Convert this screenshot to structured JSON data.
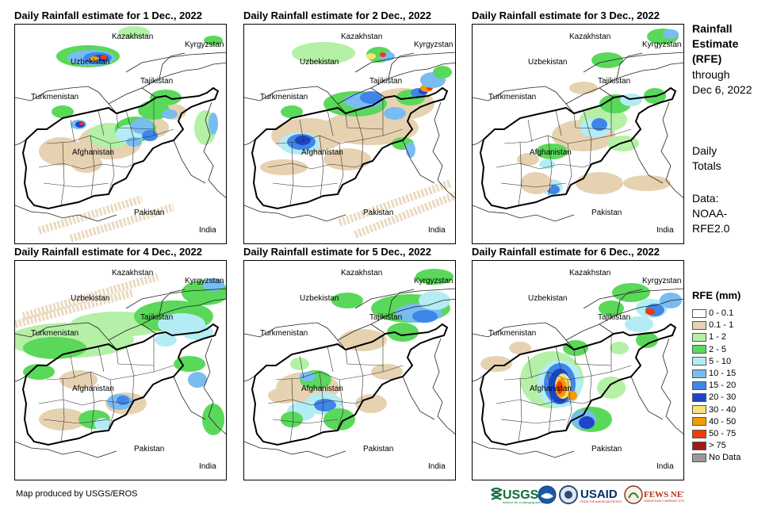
{
  "panels": [
    {
      "title": "Daily Rainfall estimate for 1 Dec., 2022",
      "day": 1
    },
    {
      "title": "Daily Rainfall estimate for 2 Dec., 2022",
      "day": 2
    },
    {
      "title": "Daily Rainfall estimate for 3 Dec., 2022",
      "day": 3
    },
    {
      "title": "Daily Rainfall estimate for 4 Dec., 2022",
      "day": 4
    },
    {
      "title": "Daily Rainfall estimate for 5 Dec., 2022",
      "day": 5
    },
    {
      "title": "Daily Rainfall estimate for 6 Dec., 2022",
      "day": 6
    }
  ],
  "countries": {
    "kazakhstan": "Kazakhstan",
    "kyrgyzstan": "Kyrgyzstan",
    "uzbekistan": "Uzbekistan",
    "tajikistan": "Tajikistan",
    "turkmenistan": "Turkmenistan",
    "afghanistan": "Afghanistan",
    "pakistan": "Pakistan",
    "india": "India"
  },
  "side": {
    "title_lines": [
      "Rainfall",
      "Estimate",
      "(RFE)"
    ],
    "through_lines": [
      "through",
      "Dec 6, 2022"
    ],
    "daily_lines": [
      "Daily",
      "Totals"
    ],
    "data_lines": [
      "Data:",
      "NOAA-",
      "RFE2.0"
    ]
  },
  "legend": {
    "title": "RFE (mm)",
    "items": [
      {
        "label": "0 - 0.1",
        "color": "#ffffff"
      },
      {
        "label": "0.1 - 1",
        "color": "#e6d2b1"
      },
      {
        "label": "1 - 2",
        "color": "#b4f0a6"
      },
      {
        "label": "2 - 5",
        "color": "#5ad85a"
      },
      {
        "label": "5 - 10",
        "color": "#b3ecf5"
      },
      {
        "label": "10 - 15",
        "color": "#78bcf2"
      },
      {
        "label": "15 - 20",
        "color": "#3f86e8"
      },
      {
        "label": "20 - 30",
        "color": "#1d45c8"
      },
      {
        "label": "30 - 40",
        "color": "#f7e27a"
      },
      {
        "label": "40 - 50",
        "color": "#f59a00"
      },
      {
        "label": "50 - 75",
        "color": "#f23a0a"
      },
      {
        "label": "> 75",
        "color": "#a11a12"
      },
      {
        "label": "No Data",
        "color": "#999999"
      }
    ]
  },
  "credit": "Map produced by USGS/EROS",
  "logos": {
    "usgs": "USGS",
    "usaid": "USAID",
    "fewsnet": "FEWS NET"
  }
}
